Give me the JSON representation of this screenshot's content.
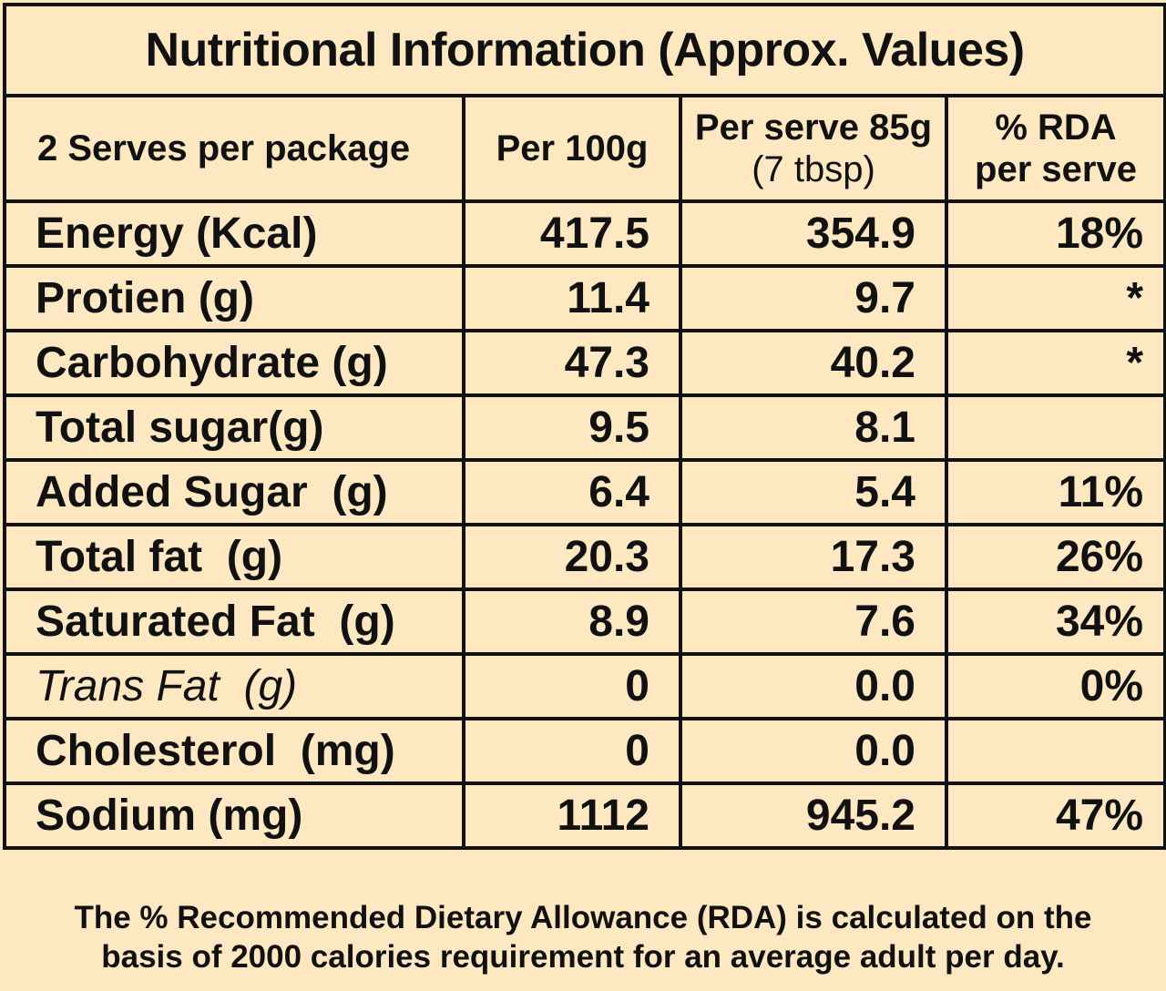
{
  "title": "Nutritional Information (Approx. Values)",
  "header": {
    "serves": "2 Serves per package",
    "per_100g": "Per 100g",
    "per_serve_line1": "Per serve 85g",
    "per_serve_line2": "(7 tbsp)",
    "rda_line1": "% RDA",
    "rda_line2": "per serve"
  },
  "rows": [
    {
      "name": "Energy (Kcal)",
      "per_100g": "417.5",
      "per_serve": "354.9",
      "rda": "18%"
    },
    {
      "name": "Protien (g)",
      "per_100g": "11.4",
      "per_serve": "9.7",
      "rda": "*"
    },
    {
      "name": "Carbohydrate (g)",
      "per_100g": "47.3",
      "per_serve": "40.2",
      "rda": "*"
    },
    {
      "name": "Total sugar(g)",
      "per_100g": "9.5",
      "per_serve": "8.1",
      "rda": ""
    },
    {
      "name": "Added Sugar  (g)",
      "per_100g": "6.4",
      "per_serve": "5.4",
      "rda": "11%"
    },
    {
      "name": "Total fat  (g)",
      "per_100g": "20.3",
      "per_serve": "17.3",
      "rda": "26%"
    },
    {
      "name": "Saturated Fat  (g)",
      "per_100g": "8.9",
      "per_serve": "7.6",
      "rda": "34%"
    },
    {
      "name": "Trans Fat  (g)",
      "per_100g": "0",
      "per_serve": "0.0",
      "rda": "0%"
    },
    {
      "name": "Cholesterol  (mg)",
      "per_100g": "0",
      "per_serve": "0.0",
      "rda": ""
    },
    {
      "name": "Sodium (mg)",
      "per_100g": "1112",
      "per_serve": "945.2",
      "rda": "47%"
    }
  ],
  "footnote_line1": "The % Recommended Dietary Allowance (RDA) is calculated on the",
  "footnote_line2": "basis of 2000 calories requirement for an average adult per day.",
  "colors": {
    "background": "#fde8c2",
    "border": "#111111",
    "text": "#111111"
  }
}
